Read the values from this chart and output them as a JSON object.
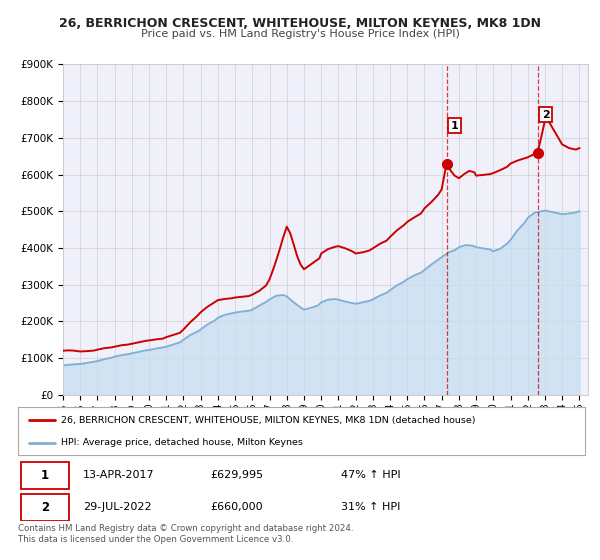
{
  "title1": "26, BERRICHON CRESCENT, WHITEHOUSE, MILTON KEYNES, MK8 1DN",
  "title2": "Price paid vs. HM Land Registry's House Price Index (HPI)",
  "ylim": [
    0,
    900000
  ],
  "yticks": [
    0,
    100000,
    200000,
    300000,
    400000,
    500000,
    600000,
    700000,
    800000,
    900000
  ],
  "ytick_labels": [
    "£0",
    "£100K",
    "£200K",
    "£300K",
    "£400K",
    "£500K",
    "£600K",
    "£700K",
    "£800K",
    "£900K"
  ],
  "xlim_start": 1995.0,
  "xlim_end": 2025.5,
  "xticks": [
    1995,
    1996,
    1997,
    1998,
    1999,
    2000,
    2001,
    2002,
    2003,
    2004,
    2005,
    2006,
    2007,
    2008,
    2009,
    2010,
    2011,
    2012,
    2013,
    2014,
    2015,
    2016,
    2017,
    2018,
    2019,
    2020,
    2021,
    2022,
    2023,
    2024,
    2025
  ],
  "sale1_x": 2017.28,
  "sale1_y": 629995,
  "sale2_x": 2022.57,
  "sale2_y": 660000,
  "vline1_x": 2017.28,
  "vline2_x": 2022.57,
  "marker_color": "#cc0000",
  "hpi_color": "#7eb0d4",
  "hpi_fill_color": "#c5ddf0",
  "property_color": "#cc0000",
  "grid_color": "#d0d0d0",
  "bg_color": "#f0f0fa",
  "legend_label1": "26, BERRICHON CRESCENT, WHITEHOUSE, MILTON KEYNES, MK8 1DN (detached house)",
  "legend_label2": "HPI: Average price, detached house, Milton Keynes",
  "annotation1_date": "13-APR-2017",
  "annotation1_price": "£629,995",
  "annotation1_hpi": "47% ↑ HPI",
  "annotation2_date": "29-JUL-2022",
  "annotation2_price": "£660,000",
  "annotation2_hpi": "31% ↑ HPI",
  "footer": "Contains HM Land Registry data © Crown copyright and database right 2024.\nThis data is licensed under the Open Government Licence v3.0.",
  "property_data": [
    [
      1995.0,
      120000
    ],
    [
      1995.3,
      121000
    ],
    [
      1995.6,
      120500
    ],
    [
      1996.0,
      118000
    ],
    [
      1996.4,
      119000
    ],
    [
      1996.8,
      120500
    ],
    [
      1997.0,
      123000
    ],
    [
      1997.4,
      127000
    ],
    [
      1997.8,
      129000
    ],
    [
      1998.0,
      131000
    ],
    [
      1998.4,
      135000
    ],
    [
      1998.8,
      137000
    ],
    [
      1999.0,
      139000
    ],
    [
      1999.4,
      143000
    ],
    [
      1999.8,
      147000
    ],
    [
      2000.0,
      148000
    ],
    [
      2000.4,
      151000
    ],
    [
      2000.8,
      153000
    ],
    [
      2001.0,
      157000
    ],
    [
      2001.4,
      163000
    ],
    [
      2001.8,
      169000
    ],
    [
      2002.0,
      178000
    ],
    [
      2002.4,
      198000
    ],
    [
      2002.8,
      215000
    ],
    [
      2003.0,
      225000
    ],
    [
      2003.4,
      240000
    ],
    [
      2003.8,
      252000
    ],
    [
      2004.0,
      258000
    ],
    [
      2004.4,
      261000
    ],
    [
      2004.8,
      263000
    ],
    [
      2005.0,
      265000
    ],
    [
      2005.4,
      267000
    ],
    [
      2005.8,
      269000
    ],
    [
      2006.0,
      273000
    ],
    [
      2006.4,
      283000
    ],
    [
      2006.8,
      298000
    ],
    [
      2007.0,
      315000
    ],
    [
      2007.2,
      340000
    ],
    [
      2007.4,
      368000
    ],
    [
      2007.6,
      398000
    ],
    [
      2007.8,
      430000
    ],
    [
      2008.0,
      458000
    ],
    [
      2008.2,
      440000
    ],
    [
      2008.4,
      410000
    ],
    [
      2008.6,
      378000
    ],
    [
      2008.8,
      355000
    ],
    [
      2009.0,
      342000
    ],
    [
      2009.3,
      352000
    ],
    [
      2009.6,
      362000
    ],
    [
      2009.9,
      372000
    ],
    [
      2010.0,
      385000
    ],
    [
      2010.4,
      397000
    ],
    [
      2010.8,
      403000
    ],
    [
      2011.0,
      405000
    ],
    [
      2011.4,
      399000
    ],
    [
      2011.8,
      391000
    ],
    [
      2012.0,
      385000
    ],
    [
      2012.4,
      388000
    ],
    [
      2012.8,
      393000
    ],
    [
      2013.0,
      399000
    ],
    [
      2013.4,
      411000
    ],
    [
      2013.8,
      420000
    ],
    [
      2014.0,
      430000
    ],
    [
      2014.4,
      448000
    ],
    [
      2014.8,
      462000
    ],
    [
      2015.0,
      471000
    ],
    [
      2015.4,
      483000
    ],
    [
      2015.8,
      494000
    ],
    [
      2016.0,
      508000
    ],
    [
      2016.4,
      525000
    ],
    [
      2016.8,
      545000
    ],
    [
      2017.0,
      560000
    ],
    [
      2017.28,
      629995
    ],
    [
      2017.5,
      612000
    ],
    [
      2017.75,
      597000
    ],
    [
      2018.0,
      590000
    ],
    [
      2018.3,
      601000
    ],
    [
      2018.6,
      610000
    ],
    [
      2018.9,
      606000
    ],
    [
      2019.0,
      597000
    ],
    [
      2019.4,
      599000
    ],
    [
      2019.8,
      601000
    ],
    [
      2020.0,
      604000
    ],
    [
      2020.4,
      612000
    ],
    [
      2020.8,
      621000
    ],
    [
      2021.0,
      630000
    ],
    [
      2021.4,
      638000
    ],
    [
      2021.8,
      644000
    ],
    [
      2022.0,
      647000
    ],
    [
      2022.57,
      660000
    ],
    [
      2022.75,
      695000
    ],
    [
      2023.0,
      748000
    ],
    [
      2023.25,
      742000
    ],
    [
      2023.5,
      722000
    ],
    [
      2023.75,
      702000
    ],
    [
      2024.0,
      682000
    ],
    [
      2024.4,
      672000
    ],
    [
      2024.8,
      668000
    ],
    [
      2025.0,
      672000
    ]
  ],
  "hpi_data": [
    [
      1995.0,
      80000
    ],
    [
      1995.4,
      82000
    ],
    [
      1995.8,
      83500
    ],
    [
      1996.0,
      84000
    ],
    [
      1996.4,
      87000
    ],
    [
      1996.8,
      90000
    ],
    [
      1997.0,
      92000
    ],
    [
      1997.4,
      97000
    ],
    [
      1997.8,
      101000
    ],
    [
      1998.0,
      104000
    ],
    [
      1998.4,
      108000
    ],
    [
      1998.8,
      111000
    ],
    [
      1999.0,
      113000
    ],
    [
      1999.4,
      117000
    ],
    [
      1999.8,
      121000
    ],
    [
      2000.0,
      122000
    ],
    [
      2000.4,
      126000
    ],
    [
      2000.8,
      129000
    ],
    [
      2001.0,
      131000
    ],
    [
      2001.4,
      137000
    ],
    [
      2001.8,
      143000
    ],
    [
      2002.0,
      150000
    ],
    [
      2002.4,
      163000
    ],
    [
      2002.8,
      172000
    ],
    [
      2003.0,
      178000
    ],
    [
      2003.4,
      192000
    ],
    [
      2003.8,
      202000
    ],
    [
      2004.0,
      210000
    ],
    [
      2004.4,
      218000
    ],
    [
      2004.8,
      222000
    ],
    [
      2005.0,
      224000
    ],
    [
      2005.4,
      227000
    ],
    [
      2005.8,
      229000
    ],
    [
      2006.0,
      232000
    ],
    [
      2006.4,
      243000
    ],
    [
      2006.8,
      253000
    ],
    [
      2007.0,
      260000
    ],
    [
      2007.4,
      270000
    ],
    [
      2007.8,
      272000
    ],
    [
      2008.0,
      268000
    ],
    [
      2008.4,
      252000
    ],
    [
      2008.8,
      238000
    ],
    [
      2009.0,
      232000
    ],
    [
      2009.4,
      237000
    ],
    [
      2009.8,
      243000
    ],
    [
      2010.0,
      252000
    ],
    [
      2010.4,
      259000
    ],
    [
      2010.8,
      261000
    ],
    [
      2011.0,
      259000
    ],
    [
      2011.4,
      254000
    ],
    [
      2011.8,
      250000
    ],
    [
      2012.0,
      248000
    ],
    [
      2012.4,
      252000
    ],
    [
      2012.8,
      256000
    ],
    [
      2013.0,
      260000
    ],
    [
      2013.4,
      270000
    ],
    [
      2013.8,
      278000
    ],
    [
      2014.0,
      285000
    ],
    [
      2014.4,
      298000
    ],
    [
      2014.8,
      308000
    ],
    [
      2015.0,
      315000
    ],
    [
      2015.4,
      325000
    ],
    [
      2015.8,
      333000
    ],
    [
      2016.0,
      340000
    ],
    [
      2016.4,
      355000
    ],
    [
      2016.8,
      368000
    ],
    [
      2017.0,
      375000
    ],
    [
      2017.4,
      388000
    ],
    [
      2017.8,
      395000
    ],
    [
      2018.0,
      402000
    ],
    [
      2018.4,
      408000
    ],
    [
      2018.8,
      406000
    ],
    [
      2019.0,
      402000
    ],
    [
      2019.4,
      399000
    ],
    [
      2019.8,
      396000
    ],
    [
      2020.0,
      391000
    ],
    [
      2020.4,
      398000
    ],
    [
      2020.8,
      412000
    ],
    [
      2021.0,
      422000
    ],
    [
      2021.4,
      448000
    ],
    [
      2021.8,
      468000
    ],
    [
      2022.0,
      482000
    ],
    [
      2022.4,
      496000
    ],
    [
      2022.8,
      500000
    ],
    [
      2023.0,
      502000
    ],
    [
      2023.4,
      498000
    ],
    [
      2023.8,
      494000
    ],
    [
      2024.0,
      492000
    ],
    [
      2024.4,
      494000
    ],
    [
      2024.8,
      497000
    ],
    [
      2025.0,
      500000
    ]
  ]
}
